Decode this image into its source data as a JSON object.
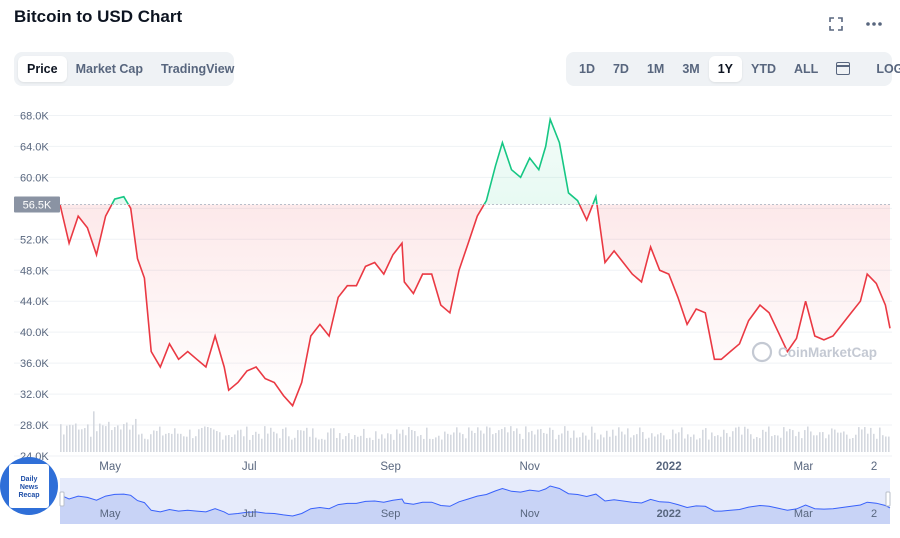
{
  "header": {
    "title": "Bitcoin to USD Chart"
  },
  "view_tabs": [
    {
      "label": "Price",
      "active": true
    },
    {
      "label": "Market Cap",
      "active": false
    },
    {
      "label": "TradingView",
      "active": false
    }
  ],
  "range_tabs": [
    {
      "label": "1D",
      "active": false
    },
    {
      "label": "7D",
      "active": false
    },
    {
      "label": "1M",
      "active": false
    },
    {
      "label": "3M",
      "active": false
    },
    {
      "label": "1Y",
      "active": true
    },
    {
      "label": "YTD",
      "active": false
    },
    {
      "label": "ALL",
      "active": false
    }
  ],
  "log_label": "LOG",
  "watermark": "CoinMarketCap",
  "badge_lines": [
    "Daily",
    "News",
    "Recap"
  ],
  "colors": {
    "up": "#16c784",
    "down": "#ea3943",
    "navigator": "#3861fb"
  },
  "chart_data": {
    "type": "area",
    "title": "Bitcoin to USD Chart",
    "xlabel": "",
    "ylabel": "",
    "x_range": [
      "2021-04-09",
      "2022-04-08"
    ],
    "ylim": [
      24000,
      70000
    ],
    "y_ticks": [
      24000,
      28000,
      32000,
      36000,
      40000,
      44000,
      48000,
      52000,
      56000,
      60000,
      64000,
      68000
    ],
    "y_tick_labels": [
      "24.0K",
      "28.0K",
      "32.0K",
      "36.0K",
      "40.0K",
      "44.0K",
      "48.0K",
      "52.0K",
      "56.0K",
      "60.0K",
      "64.0K",
      "68.0K"
    ],
    "x_ticks": [
      {
        "date": "2021-05-01",
        "label": "May"
      },
      {
        "date": "2021-07-01",
        "label": "Jul"
      },
      {
        "date": "2021-09-01",
        "label": "Sep"
      },
      {
        "date": "2021-11-01",
        "label": "Nov"
      },
      {
        "date": "2022-01-01",
        "label": "2022"
      },
      {
        "date": "2022-03-01",
        "label": "Mar"
      },
      {
        "date": "2022-04-01",
        "label": "2"
      }
    ],
    "baseline": {
      "value": 56500,
      "label": "56.5K"
    },
    "grid": true,
    "series": [
      {
        "x": [
          "2021-04-09",
          "2021-04-13",
          "2021-04-17",
          "2021-04-21",
          "2021-04-25",
          "2021-04-29",
          "2021-05-03",
          "2021-05-07",
          "2021-05-10",
          "2021-05-13",
          "2021-05-16",
          "2021-05-19",
          "2021-05-23",
          "2021-05-27",
          "2021-05-31",
          "2021-06-04",
          "2021-06-08",
          "2021-06-12",
          "2021-06-16",
          "2021-06-20",
          "2021-06-22",
          "2021-06-26",
          "2021-06-30",
          "2021-07-04",
          "2021-07-08",
          "2021-07-12",
          "2021-07-16",
          "2021-07-20",
          "2021-07-24",
          "2021-07-28",
          "2021-08-01",
          "2021-08-05",
          "2021-08-09",
          "2021-08-13",
          "2021-08-17",
          "2021-08-21",
          "2021-08-25",
          "2021-08-29",
          "2021-09-02",
          "2021-09-06",
          "2021-09-07",
          "2021-09-11",
          "2021-09-15",
          "2021-09-19",
          "2021-09-23",
          "2021-09-27",
          "2021-10-01",
          "2021-10-05",
          "2021-10-09",
          "2021-10-13",
          "2021-10-17",
          "2021-10-20",
          "2021-10-24",
          "2021-10-28",
          "2021-11-01",
          "2021-11-05",
          "2021-11-08",
          "2021-11-10",
          "2021-11-14",
          "2021-11-18",
          "2021-11-22",
          "2021-11-26",
          "2021-11-30",
          "2021-12-04",
          "2021-12-08",
          "2021-12-12",
          "2021-12-16",
          "2021-12-20",
          "2021-12-24",
          "2021-12-28",
          "2022-01-01",
          "2022-01-05",
          "2022-01-09",
          "2022-01-13",
          "2022-01-17",
          "2022-01-21",
          "2022-01-24",
          "2022-01-28",
          "2022-02-01",
          "2022-02-05",
          "2022-02-10",
          "2022-02-14",
          "2022-02-18",
          "2022-02-22",
          "2022-02-26",
          "2022-03-02",
          "2022-03-06",
          "2022-03-10",
          "2022-03-14",
          "2022-03-18",
          "2022-03-22",
          "2022-03-26",
          "2022-03-29",
          "2022-04-02",
          "2022-04-06",
          "2022-04-08"
        ],
        "values": [
          56500,
          51500,
          55000,
          53500,
          50000,
          55000,
          57200,
          57500,
          56000,
          49500,
          47000,
          37500,
          35500,
          38500,
          36500,
          37500,
          36500,
          35500,
          39500,
          35500,
          32500,
          33500,
          35000,
          35500,
          34000,
          33500,
          31800,
          30500,
          33500,
          39500,
          41000,
          39500,
          44500,
          46000,
          46000,
          48500,
          49000,
          47500,
          50000,
          51500,
          46500,
          45000,
          47500,
          47500,
          43500,
          42500,
          48000,
          51500,
          55000,
          57000,
          61500,
          64500,
          61000,
          60000,
          62500,
          61000,
          64000,
          67500,
          64500,
          58000,
          57000,
          54500,
          57500,
          49000,
          50500,
          49000,
          47500,
          46500,
          51000,
          48000,
          47500,
          44500,
          41000,
          43000,
          42500,
          36500,
          36500,
          37500,
          38500,
          41500,
          43500,
          42500,
          40000,
          37500,
          39200,
          44000,
          39500,
          39000,
          39500,
          41000,
          42500,
          44000,
          47500,
          46300,
          43500,
          40500
        ]
      }
    ]
  }
}
